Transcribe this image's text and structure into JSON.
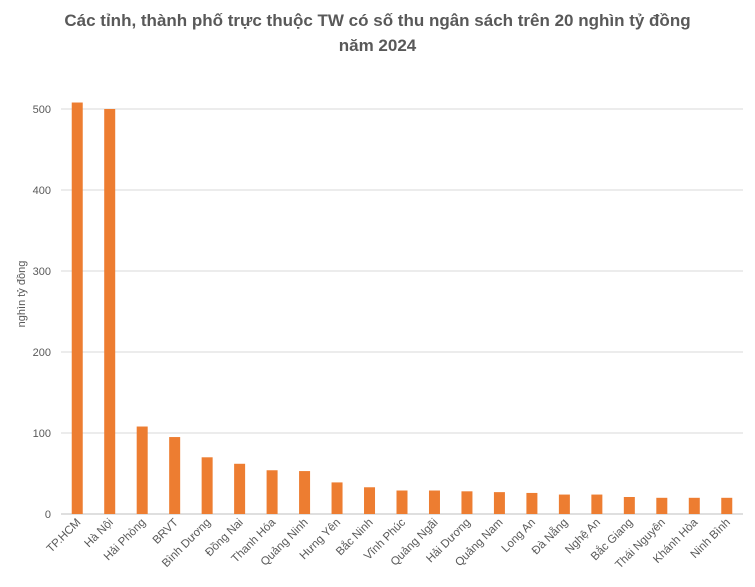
{
  "chart_data": {
    "type": "bar",
    "title_line1": "Các tỉnh, thành phố trực thuộc TW có số thu ngân sách trên 20 nghìn tỷ đồng",
    "title_line2": "năm 2024",
    "ylabel": "nghìn tỷ đồng",
    "xlabel": "",
    "ylim": [
      0,
      500
    ],
    "yticks": [
      "0",
      "100",
      "200",
      "300",
      "400",
      "500"
    ],
    "grid": true,
    "bar_color": "#ED7D31",
    "categories": [
      "TP.HCM",
      "Hà Nội",
      "Hải Phòng",
      "BRVT",
      "Bình Dương",
      "Đồng Nai",
      "Thanh Hóa",
      "Quảng Ninh",
      "Hưng Yên",
      "Bắc Ninh",
      "Vĩnh Phúc",
      "Quảng Ngãi",
      "Hải Dương",
      "Quảng Nam",
      "Long An",
      "Đà Nẵng",
      "Nghệ An",
      "Bắc Giang",
      "Thái Nguyên",
      "Khánh Hòa",
      "Ninh Bình"
    ],
    "values": [
      508,
      500,
      108,
      95,
      70,
      62,
      54,
      53,
      39,
      33,
      29,
      29,
      28,
      27,
      26,
      24,
      24,
      21,
      20,
      20,
      20
    ]
  }
}
